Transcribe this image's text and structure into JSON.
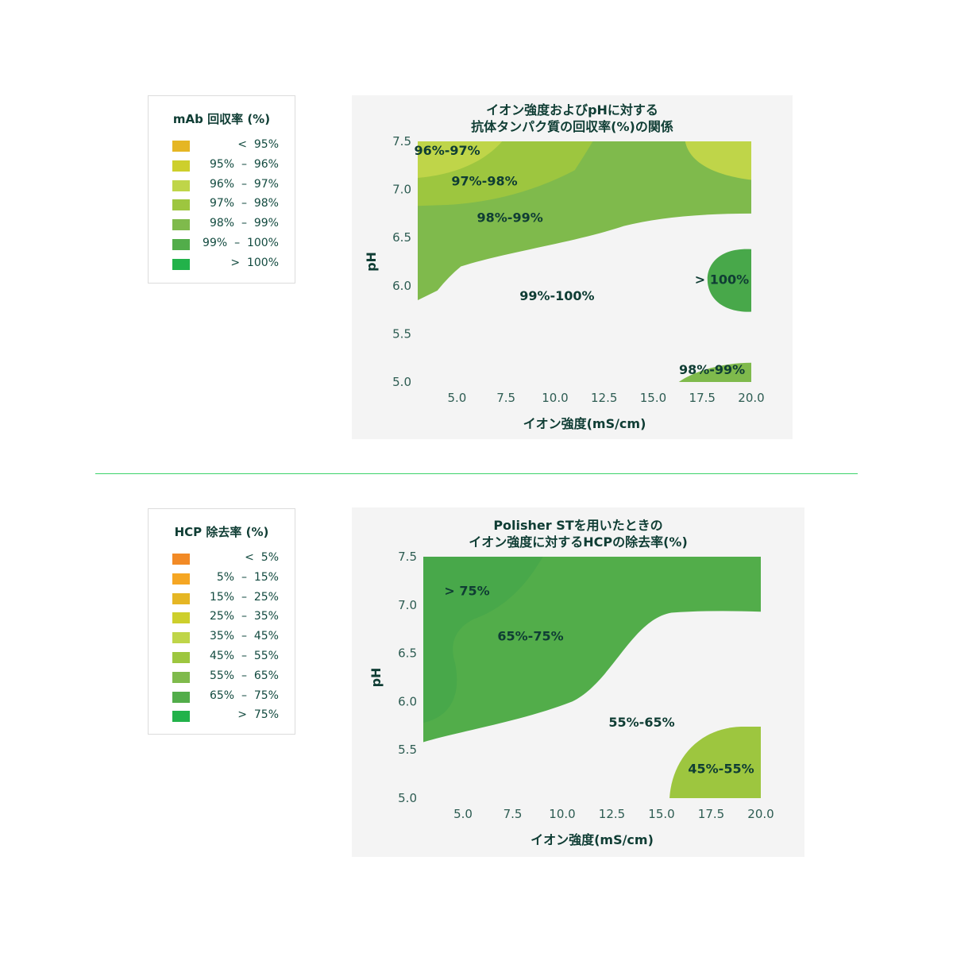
{
  "legend1": {
    "title": "mAb 回収率 (%)",
    "items": [
      {
        "label": "<  95%",
        "color": "#e5b624"
      },
      {
        "label": "95%  –  96%",
        "color": "#cdcf2c"
      },
      {
        "label": "96%  –  97%",
        "color": "#bfd549"
      },
      {
        "label": "97%  –  98%",
        "color": "#9dc63f"
      },
      {
        "label": "98%  –  99%",
        "color": "#7fba4c"
      },
      {
        "label": "99%  –  100%",
        "color": "#52ad4a"
      },
      {
        "label": ">  100%",
        "color": "#22b24a"
      }
    ]
  },
  "legend2": {
    "title": "HCP 除去率 (%)",
    "items": [
      {
        "label": "<  5%",
        "color": "#f28a26"
      },
      {
        "label": "5%  –  15%",
        "color": "#f5a623"
      },
      {
        "label": "15%  –  25%",
        "color": "#e5b624"
      },
      {
        "label": "25%  –  35%",
        "color": "#cdcf2c"
      },
      {
        "label": "35%  –  45%",
        "color": "#bfd549"
      },
      {
        "label": "45%  –  55%",
        "color": "#9dc63f"
      },
      {
        "label": "55%  –  65%",
        "color": "#7fba4c"
      },
      {
        "label": "65%  –  75%",
        "color": "#52ad4a"
      },
      {
        "label": ">  75%",
        "color": "#22b24a"
      }
    ]
  },
  "chart_data": [
    {
      "type": "heatmap",
      "title_line1": "イオン強度およびpHに対する",
      "title_line2": "抗体タンパク質の回収率(%)の関係",
      "xlabel": "イオン強度(mS/cm)",
      "ylabel": "pH",
      "xlim": [
        3.0,
        20.0
      ],
      "ylim": [
        5.0,
        7.5
      ],
      "xticks": [
        "5.0",
        "7.5",
        "10.0",
        "12.5",
        "15.0",
        "17.5",
        "20.0"
      ],
      "yticks": [
        "5.0",
        "5.5",
        "6.0",
        "6.5",
        "7.0",
        "7.5"
      ],
      "region_labels": [
        {
          "text": "96%-97%",
          "x": 4.5,
          "y": 7.41
        },
        {
          "text": "97%-98%",
          "x": 6.4,
          "y": 7.09
        },
        {
          "text": "98%-99%",
          "x": 7.7,
          "y": 6.71
        },
        {
          "text": "99%-100%",
          "x": 10.1,
          "y": 5.9
        },
        {
          "text": "> 100%",
          "x": 18.5,
          "y": 6.07
        },
        {
          "text": "98%-99%",
          "x": 18.0,
          "y": 5.13
        }
      ],
      "colors": {
        "bg": "#52ad4a",
        "band98": "#7fba4c",
        "band97": "#9dc63f",
        "band96": "#bfd549",
        "band100": "#48a84a"
      }
    },
    {
      "type": "heatmap",
      "title_line1": "Polisher STを用いたときの",
      "title_line2": "イオン強度に対するHCPの除去率(%)",
      "xlabel": "イオン強度(mS/cm)",
      "ylabel": "pH",
      "xlim": [
        3.0,
        20.0
      ],
      "ylim": [
        5.0,
        7.5
      ],
      "xticks": [
        "5.0",
        "7.5",
        "10.0",
        "12.5",
        "15.0",
        "17.5",
        "20.0"
      ],
      "yticks": [
        "5.0",
        "5.5",
        "6.0",
        "6.5",
        "7.0",
        "7.5"
      ],
      "region_labels": [
        {
          "text": "> 75%",
          "x": 5.2,
          "y": 7.15
        },
        {
          "text": "65%-75%",
          "x": 8.4,
          "y": 6.68
        },
        {
          "text": "55%-65%",
          "x": 14.0,
          "y": 5.79
        },
        {
          "text": "45%-55%",
          "x": 18.0,
          "y": 5.31
        }
      ],
      "colors": {
        "bg": "#7fba4c",
        "band65": "#52ad4a",
        "band75": "#48a84a",
        "band45": "#9dc63f"
      }
    }
  ]
}
